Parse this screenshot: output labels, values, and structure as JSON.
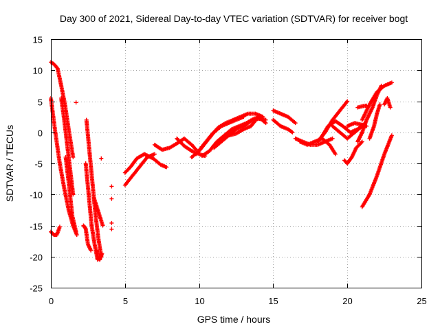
{
  "chart_data": {
    "type": "scatter",
    "title": "Day 300 of 2021, Sidereal Day-to-day VTEC variation (SDTVAR) for receiver bogt",
    "xlabel": "GPS time / hours",
    "ylabel": "SDTVAR / TECUs",
    "xlim": [
      0,
      25
    ],
    "ylim": [
      -25,
      15
    ],
    "xticks": [
      0,
      5,
      10,
      15,
      20,
      25
    ],
    "yticks": [
      -25,
      -20,
      -15,
      -10,
      -5,
      0,
      5,
      10,
      15
    ],
    "xtick_labels": [
      "0",
      "5",
      "10",
      "15",
      "20",
      "25"
    ],
    "ytick_labels": [
      "-25",
      "-20",
      "-15",
      "-10",
      "-5",
      "0",
      "5",
      "10",
      "15"
    ],
    "grid": true,
    "marker": "+",
    "color": "#ff0000",
    "tracks": [
      {
        "name": "track-a",
        "x": [
          0.0,
          0.3,
          0.6,
          0.9,
          1.2,
          1.5,
          1.75
        ],
        "y": [
          5.5,
          0.0,
          -5.0,
          -9.0,
          -12.5,
          -15.0,
          -16.5
        ]
      },
      {
        "name": "track-b",
        "x": [
          0.0,
          0.2,
          0.45,
          0.7,
          0.95,
          1.2,
          1.5
        ],
        "y": [
          11.3,
          11.0,
          10.3,
          7.5,
          4.5,
          0.5,
          -4.0
        ]
      },
      {
        "name": "track-c",
        "x": [
          0.7,
          0.9,
          1.1,
          1.3,
          1.5
        ],
        "y": [
          5.5,
          2.0,
          -2.0,
          -6.0,
          -10.0
        ]
      },
      {
        "name": "track-d",
        "x": [
          1.0,
          1.2,
          1.45,
          1.7
        ],
        "y": [
          -4.0,
          -8.0,
          -13.5,
          -16.0
        ]
      },
      {
        "name": "track-e",
        "x": [
          0.0,
          0.2,
          0.4,
          0.6
        ],
        "y": [
          -16.0,
          -16.5,
          -16.5,
          -15.2
        ]
      },
      {
        "name": "track-f",
        "x": [
          2.4,
          2.6,
          2.8,
          3.0,
          3.2,
          3.4
        ],
        "y": [
          2.0,
          -3.0,
          -8.0,
          -13.0,
          -17.0,
          -20.0
        ]
      },
      {
        "name": "track-g",
        "x": [
          2.35,
          2.55,
          2.75,
          2.95,
          3.15
        ],
        "y": [
          -5.0,
          -10.0,
          -15.0,
          -18.0,
          -20.5
        ]
      },
      {
        "name": "track-h",
        "x": [
          2.2,
          2.35,
          2.5,
          2.7
        ],
        "y": [
          -15.0,
          -15.5,
          -18.0,
          -19.0
        ]
      },
      {
        "name": "track-i",
        "x": [
          2.9,
          3.1,
          3.3,
          3.5
        ],
        "y": [
          -10.5,
          -12.0,
          -13.5,
          -15.0
        ]
      },
      {
        "name": "track-j",
        "x": [
          3.1,
          3.2,
          3.3,
          3.45
        ],
        "y": [
          -19.0,
          -20.3,
          -20.5,
          -19.5
        ]
      },
      {
        "name": "track-k",
        "x": [
          5.0,
          5.4,
          5.8,
          6.3,
          6.9,
          7.4,
          7.8
        ],
        "y": [
          -6.5,
          -5.5,
          -4.2,
          -3.5,
          -4.2,
          -5.2,
          -5.6
        ]
      },
      {
        "name": "track-l",
        "x": [
          5.0,
          5.5,
          6.0,
          6.5,
          7.0
        ],
        "y": [
          -8.5,
          -7.0,
          -5.5,
          -4.0,
          -3.5
        ]
      },
      {
        "name": "track-m",
        "x": [
          7.0,
          7.5,
          8.0,
          8.5,
          9.0,
          9.5,
          9.8
        ],
        "y": [
          -2.0,
          -2.8,
          -2.5,
          -1.8,
          -1.0,
          -2.0,
          -2.8
        ]
      },
      {
        "name": "track-n",
        "x": [
          8.5,
          9.0,
          9.5,
          10.0,
          10.4
        ],
        "y": [
          -1.0,
          -2.2,
          -3.0,
          -3.5,
          -3.8
        ]
      },
      {
        "name": "track-o",
        "x": [
          9.5,
          10.0,
          10.5,
          11.0,
          11.5,
          12.0,
          12.5,
          13.0
        ],
        "y": [
          -4.0,
          -3.0,
          -1.5,
          0.0,
          1.0,
          1.5,
          2.0,
          2.5
        ]
      },
      {
        "name": "track-p",
        "x": [
          9.8,
          10.3,
          10.8,
          11.3,
          11.8,
          12.3,
          12.8,
          13.3,
          13.8,
          14.3
        ],
        "y": [
          -3.5,
          -2.0,
          -0.5,
          0.8,
          1.5,
          2.0,
          2.5,
          3.0,
          3.0,
          2.5
        ]
      },
      {
        "name": "track-q",
        "x": [
          10.2,
          10.7,
          11.2,
          11.7,
          12.2,
          12.7,
          13.2,
          13.7,
          14.2
        ],
        "y": [
          -3.8,
          -3.0,
          -1.5,
          -0.5,
          0.5,
          1.0,
          1.5,
          2.2,
          2.5
        ]
      },
      {
        "name": "track-r",
        "x": [
          11.0,
          11.5,
          12.0,
          12.5,
          13.0,
          13.5,
          14.0,
          14.5
        ],
        "y": [
          -2.5,
          -1.5,
          -0.5,
          0.5,
          1.0,
          1.8,
          2.2,
          2.0
        ]
      },
      {
        "name": "track-s",
        "x": [
          12.0,
          12.5,
          13.0,
          13.5,
          14.0,
          14.5
        ],
        "y": [
          -0.5,
          -0.2,
          0.5,
          1.0,
          2.5,
          1.5
        ]
      },
      {
        "name": "track-t",
        "x": [
          15.0,
          15.5,
          16.0,
          16.5
        ],
        "y": [
          3.5,
          3.0,
          2.5,
          1.5
        ]
      },
      {
        "name": "track-u",
        "x": [
          15.0,
          15.5,
          16.0,
          16.3
        ],
        "y": [
          2.0,
          1.0,
          0.5,
          0.0
        ]
      },
      {
        "name": "track-v",
        "x": [
          16.5,
          17.0,
          17.5,
          18.0,
          18.5,
          19.0
        ],
        "y": [
          -1.0,
          -1.5,
          -2.0,
          -2.0,
          -1.5,
          -1.0
        ]
      },
      {
        "name": "track-w",
        "x": [
          16.8,
          17.3,
          17.8,
          18.3,
          18.8,
          19.2
        ],
        "y": [
          -1.5,
          -2.0,
          -1.5,
          -1.0,
          -2.0,
          -3.5
        ]
      },
      {
        "name": "track-x",
        "x": [
          18.0,
          18.5,
          19.0,
          19.5,
          20.0
        ],
        "y": [
          -1.5,
          0.0,
          2.0,
          3.5,
          5.0
        ]
      },
      {
        "name": "track-y",
        "x": [
          18.2,
          18.7,
          19.2,
          19.7,
          20.2,
          20.7,
          21.2
        ],
        "y": [
          -1.0,
          1.0,
          1.8,
          1.0,
          0.0,
          0.5,
          1.5
        ]
      },
      {
        "name": "track-z",
        "x": [
          19.0,
          19.5,
          20.0,
          20.5,
          21.0
        ],
        "y": [
          1.0,
          0.0,
          -1.0,
          0.0,
          1.0
        ]
      },
      {
        "name": "track-aa",
        "x": [
          19.8,
          20.0,
          20.3,
          20.6,
          21.0
        ],
        "y": [
          -4.5,
          -5.0,
          -4.0,
          -2.5,
          -1.5
        ]
      },
      {
        "name": "track-ab",
        "x": [
          20.0,
          20.5,
          21.0,
          21.3
        ],
        "y": [
          1.0,
          1.5,
          1.2,
          1.0
        ]
      },
      {
        "name": "track-ac",
        "x": [
          20.7,
          21.0,
          21.3,
          21.7,
          22.0,
          22.3
        ],
        "y": [
          -1.5,
          0.0,
          2.0,
          4.0,
          6.0,
          7.5
        ]
      },
      {
        "name": "track-ad",
        "x": [
          21.0,
          21.5,
          22.0,
          22.5,
          23.0
        ],
        "y": [
          2.0,
          4.5,
          6.5,
          7.5,
          8.0
        ]
      },
      {
        "name": "track-ae",
        "x": [
          20.7,
          21.0,
          21.3
        ],
        "y": [
          4.0,
          4.2,
          4.3
        ]
      },
      {
        "name": "track-af",
        "x": [
          21.5,
          21.8,
          22.0,
          22.2
        ],
        "y": [
          -1.0,
          1.0,
          3.0,
          4.5
        ]
      },
      {
        "name": "track-ag",
        "x": [
          22.5,
          22.7,
          22.9
        ],
        "y": [
          4.5,
          5.5,
          4.0
        ]
      },
      {
        "name": "track-ah",
        "x": [
          21.0,
          21.5,
          22.0,
          22.5,
          23.0
        ],
        "y": [
          -12.0,
          -10.0,
          -7.0,
          -3.5,
          -0.5
        ]
      }
    ],
    "isolated_points": [
      {
        "x": 1.7,
        "y": 4.8
      },
      {
        "x": 3.4,
        "y": -4.2
      },
      {
        "x": 4.1,
        "y": -8.7
      },
      {
        "x": 4.1,
        "y": -10.7
      },
      {
        "x": 4.1,
        "y": -14.6
      },
      {
        "x": 4.1,
        "y": -15.6
      }
    ]
  }
}
